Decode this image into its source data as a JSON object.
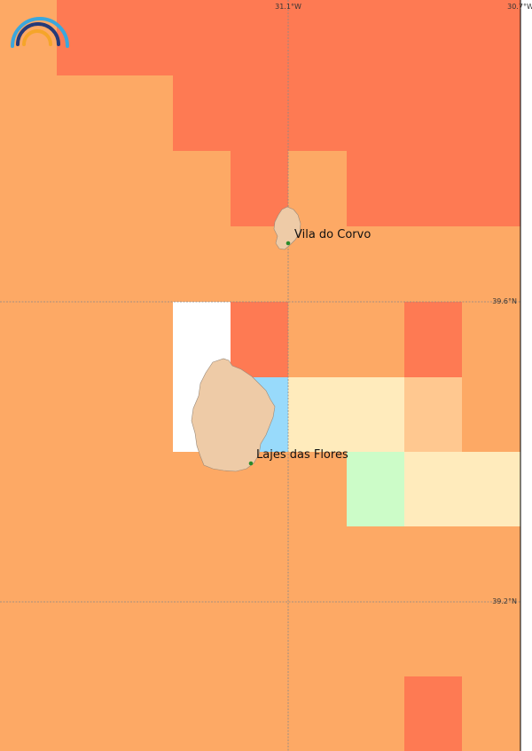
{
  "map": {
    "colors": {
      "orange": "#fda965",
      "red_orange": "#fe7a53",
      "white": "#ffffff",
      "light_blue": "#98dafb",
      "cream": "#ffebbc",
      "peach": "#ffc890",
      "light_green": "#ccfcc8",
      "land": "#eecba7",
      "grid_line": "#888888",
      "city_marker": "#2a8a2a"
    },
    "logo": {
      "name": "rainbow-logo",
      "colors": [
        "#3ba7dc",
        "#263a78",
        "#f5a52a"
      ]
    },
    "lon_labels": [
      "31.1°W",
      "30.7°W"
    ],
    "lat_labels": [
      "39.6°N",
      "39.2°N"
    ],
    "cities": [
      {
        "name": "Vila do Corvo"
      },
      {
        "name": "Lajes das Flores"
      }
    ],
    "islands": [
      "Corvo",
      "Flores"
    ]
  }
}
